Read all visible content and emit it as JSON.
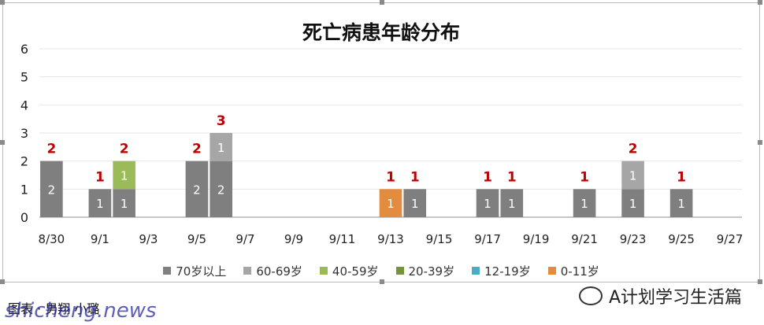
{
  "chart_data": {
    "type": "bar",
    "title": "死亡病患年龄分布",
    "ylim": [
      0,
      6
    ],
    "yticks": [
      0,
      1,
      2,
      3,
      4,
      5,
      6
    ],
    "x_tick_labels": [
      "8/30",
      "9/1",
      "9/3",
      "9/5",
      "9/7",
      "9/9",
      "9/11",
      "9/13",
      "9/15",
      "9/17",
      "9/19",
      "9/21",
      "9/23",
      "9/25",
      "9/27"
    ],
    "grid": "horizontal",
    "legend_position": "bottom",
    "categories": [
      "8/30",
      "8/31",
      "9/1",
      "9/2",
      "9/3",
      "9/4",
      "9/5",
      "9/6",
      "9/7",
      "9/8",
      "9/9",
      "9/10",
      "9/11",
      "9/12",
      "9/13",
      "9/14",
      "9/15",
      "9/16",
      "9/17",
      "9/18",
      "9/19",
      "9/20",
      "9/21",
      "9/22",
      "9/23",
      "9/24",
      "9/25",
      "9/26",
      "9/27"
    ],
    "series": [
      {
        "name": "70岁以上",
        "color": "#7f7f7f",
        "values": [
          2,
          0,
          1,
          1,
          0,
          0,
          2,
          2,
          0,
          0,
          0,
          0,
          0,
          0,
          0,
          1,
          0,
          0,
          1,
          1,
          0,
          0,
          1,
          0,
          1,
          0,
          1,
          0,
          0
        ]
      },
      {
        "name": "60-69岁",
        "color": "#a6a6a6",
        "values": [
          0,
          0,
          0,
          0,
          0,
          0,
          0,
          1,
          0,
          0,
          0,
          0,
          0,
          0,
          0,
          0,
          0,
          0,
          0,
          0,
          0,
          0,
          0,
          0,
          1,
          0,
          0,
          0,
          0
        ]
      },
      {
        "name": "40-59岁",
        "color": "#9bbb59",
        "values": [
          0,
          0,
          0,
          1,
          0,
          0,
          0,
          0,
          0,
          0,
          0,
          0,
          0,
          0,
          0,
          0,
          0,
          0,
          0,
          0,
          0,
          0,
          0,
          0,
          0,
          0,
          0,
          0,
          0
        ]
      },
      {
        "name": "20-39岁",
        "color": "#76923c",
        "values": [
          0,
          0,
          0,
          0,
          0,
          0,
          0,
          0,
          0,
          0,
          0,
          0,
          0,
          0,
          0,
          0,
          0,
          0,
          0,
          0,
          0,
          0,
          0,
          0,
          0,
          0,
          0,
          0,
          0
        ]
      },
      {
        "name": "12-19岁",
        "color": "#4bacc6",
        "values": [
          0,
          0,
          0,
          0,
          0,
          0,
          0,
          0,
          0,
          0,
          0,
          0,
          0,
          0,
          0,
          0,
          0,
          0,
          0,
          0,
          0,
          0,
          0,
          0,
          0,
          0,
          0,
          0,
          0
        ]
      },
      {
        "name": "0-11岁",
        "color": "#e38b3f",
        "values": [
          0,
          0,
          0,
          0,
          0,
          0,
          0,
          0,
          0,
          0,
          0,
          0,
          0,
          0,
          1,
          0,
          0,
          0,
          0,
          0,
          0,
          0,
          0,
          0,
          0,
          0,
          0,
          0,
          0
        ]
      }
    ],
    "totals_color": "#c00000"
  },
  "caption_text": "图表 · 男翔 小璐",
  "watermark_text": "shicheng.news",
  "wechat_text": "A计划学习生活篇"
}
